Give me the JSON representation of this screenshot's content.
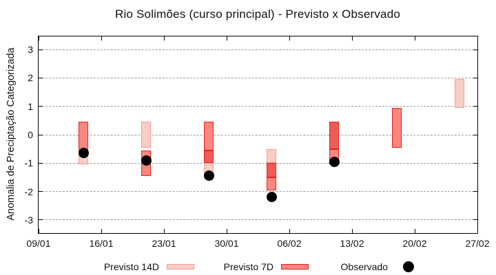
{
  "chart_data": {
    "type": "range-bar",
    "title": "Rio Solimões (curso principal) - Previsto x Observado",
    "ylabel": "Anomalia de Preciptação Categorizada",
    "xlabel": "",
    "ylim": [
      -3.46,
      3.46
    ],
    "yticks": [
      3,
      2,
      1,
      0,
      -1,
      -2,
      -3
    ],
    "grid": "horizontal-dashed",
    "x_total_days": 49,
    "xticks": [
      {
        "label": "09/01",
        "day": 0
      },
      {
        "label": "16/01",
        "day": 7
      },
      {
        "label": "23/01",
        "day": 14
      },
      {
        "label": "30/01",
        "day": 21
      },
      {
        "label": "06/02",
        "day": 28
      },
      {
        "label": "13/02",
        "day": 35
      },
      {
        "label": "20/02",
        "day": 42
      },
      {
        "label": "27/02",
        "day": 49
      }
    ],
    "legend": {
      "position": "bottom",
      "items": [
        {
          "label": "Previsto 14D",
          "series": "14d"
        },
        {
          "label": "Previsto 7D",
          "series": "7d"
        },
        {
          "label": "Observado",
          "series": "observed"
        }
      ]
    },
    "series_styles": {
      "14d": {
        "fill": "#fbcdc8",
        "border": "#f29c90"
      },
      "7d": {
        "fill": "#f98780",
        "border": "#e3241c"
      },
      "overlap": {
        "fill": "#ef5c57",
        "border": "#e3241c"
      },
      "observed": {
        "color": "#000000"
      }
    },
    "groups": [
      {
        "date": "14/01",
        "day": 5,
        "observed": -0.65,
        "segments": [
          {
            "series": "7d",
            "lo": -0.55,
            "hi": 0.45
          },
          {
            "series": "14d",
            "lo": -1.05,
            "hi": -0.55
          }
        ]
      },
      {
        "date": "21/01",
        "day": 12,
        "observed": -0.9,
        "segments": [
          {
            "series": "14d",
            "lo": -0.45,
            "hi": 0.45
          },
          {
            "series": "7d",
            "lo": -1.45,
            "hi": -0.55
          }
        ]
      },
      {
        "date": "28/01",
        "day": 19,
        "observed": -1.45,
        "segments": [
          {
            "series": "7d",
            "lo": -0.55,
            "hi": 0.45
          },
          {
            "series": "overlap",
            "lo": -1.0,
            "hi": -0.55
          },
          {
            "series": "14d",
            "lo": -1.45,
            "hi": -1.0
          }
        ]
      },
      {
        "date": "04/02",
        "day": 26,
        "observed": -2.2,
        "segments": [
          {
            "series": "14d",
            "lo": -1.0,
            "hi": -0.5
          },
          {
            "series": "overlap",
            "lo": -1.5,
            "hi": -1.0
          },
          {
            "series": "7d",
            "lo": -1.95,
            "hi": -1.5
          }
        ]
      },
      {
        "date": "11/02",
        "day": 33,
        "observed": -0.95,
        "segments": [
          {
            "series": "overlap",
            "lo": -0.5,
            "hi": 0.45
          },
          {
            "series": "7d",
            "lo": -1.05,
            "hi": -0.5
          }
        ]
      },
      {
        "date": "18/02",
        "day": 40,
        "observed": null,
        "segments": [
          {
            "series": "7d",
            "lo": -0.45,
            "hi": 0.95
          }
        ]
      },
      {
        "date": "25/02",
        "day": 47,
        "observed": null,
        "segments": [
          {
            "series": "14d",
            "lo": 0.95,
            "hi": 1.95
          }
        ]
      }
    ]
  }
}
